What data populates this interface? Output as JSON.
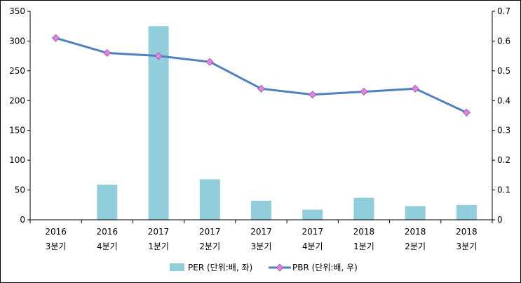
{
  "chart_data": {
    "type": "bar+line",
    "categories": [
      [
        "2016",
        "3분기"
      ],
      [
        "2016",
        "4분기"
      ],
      [
        "2017",
        "1분기"
      ],
      [
        "2017",
        "2분기"
      ],
      [
        "2017",
        "3분기"
      ],
      [
        "2017",
        "4분기"
      ],
      [
        "2018",
        "1분기"
      ],
      [
        "2018",
        "2분기"
      ],
      [
        "2018",
        "3분기"
      ]
    ],
    "series": [
      {
        "name": "PER (단위:배, 좌)",
        "type": "bar",
        "axis": "left",
        "color": "#92CDDC",
        "values": [
          null,
          59,
          325,
          68,
          32,
          17,
          37,
          23,
          25
        ]
      },
      {
        "name": "PBR (단위:배, 우)",
        "type": "line",
        "axis": "right",
        "line_color": "#4F81BD",
        "marker_color": "#E580E8",
        "marker": "diamond",
        "values": [
          0.61,
          0.56,
          0.55,
          0.53,
          0.44,
          0.42,
          0.43,
          0.44,
          0.36
        ]
      }
    ],
    "y_left": {
      "min": 0,
      "max": 350,
      "step": 50,
      "ticks": [
        "0",
        "50",
        "100",
        "150",
        "200",
        "250",
        "300",
        "350"
      ]
    },
    "y_right": {
      "min": 0,
      "max": 0.7,
      "step": 0.1,
      "ticks": [
        "0",
        "0.1",
        "0.2",
        "0.3",
        "0.4",
        "0.5",
        "0.6",
        "0.7"
      ]
    },
    "legend_position": "bottom",
    "grid": false
  }
}
